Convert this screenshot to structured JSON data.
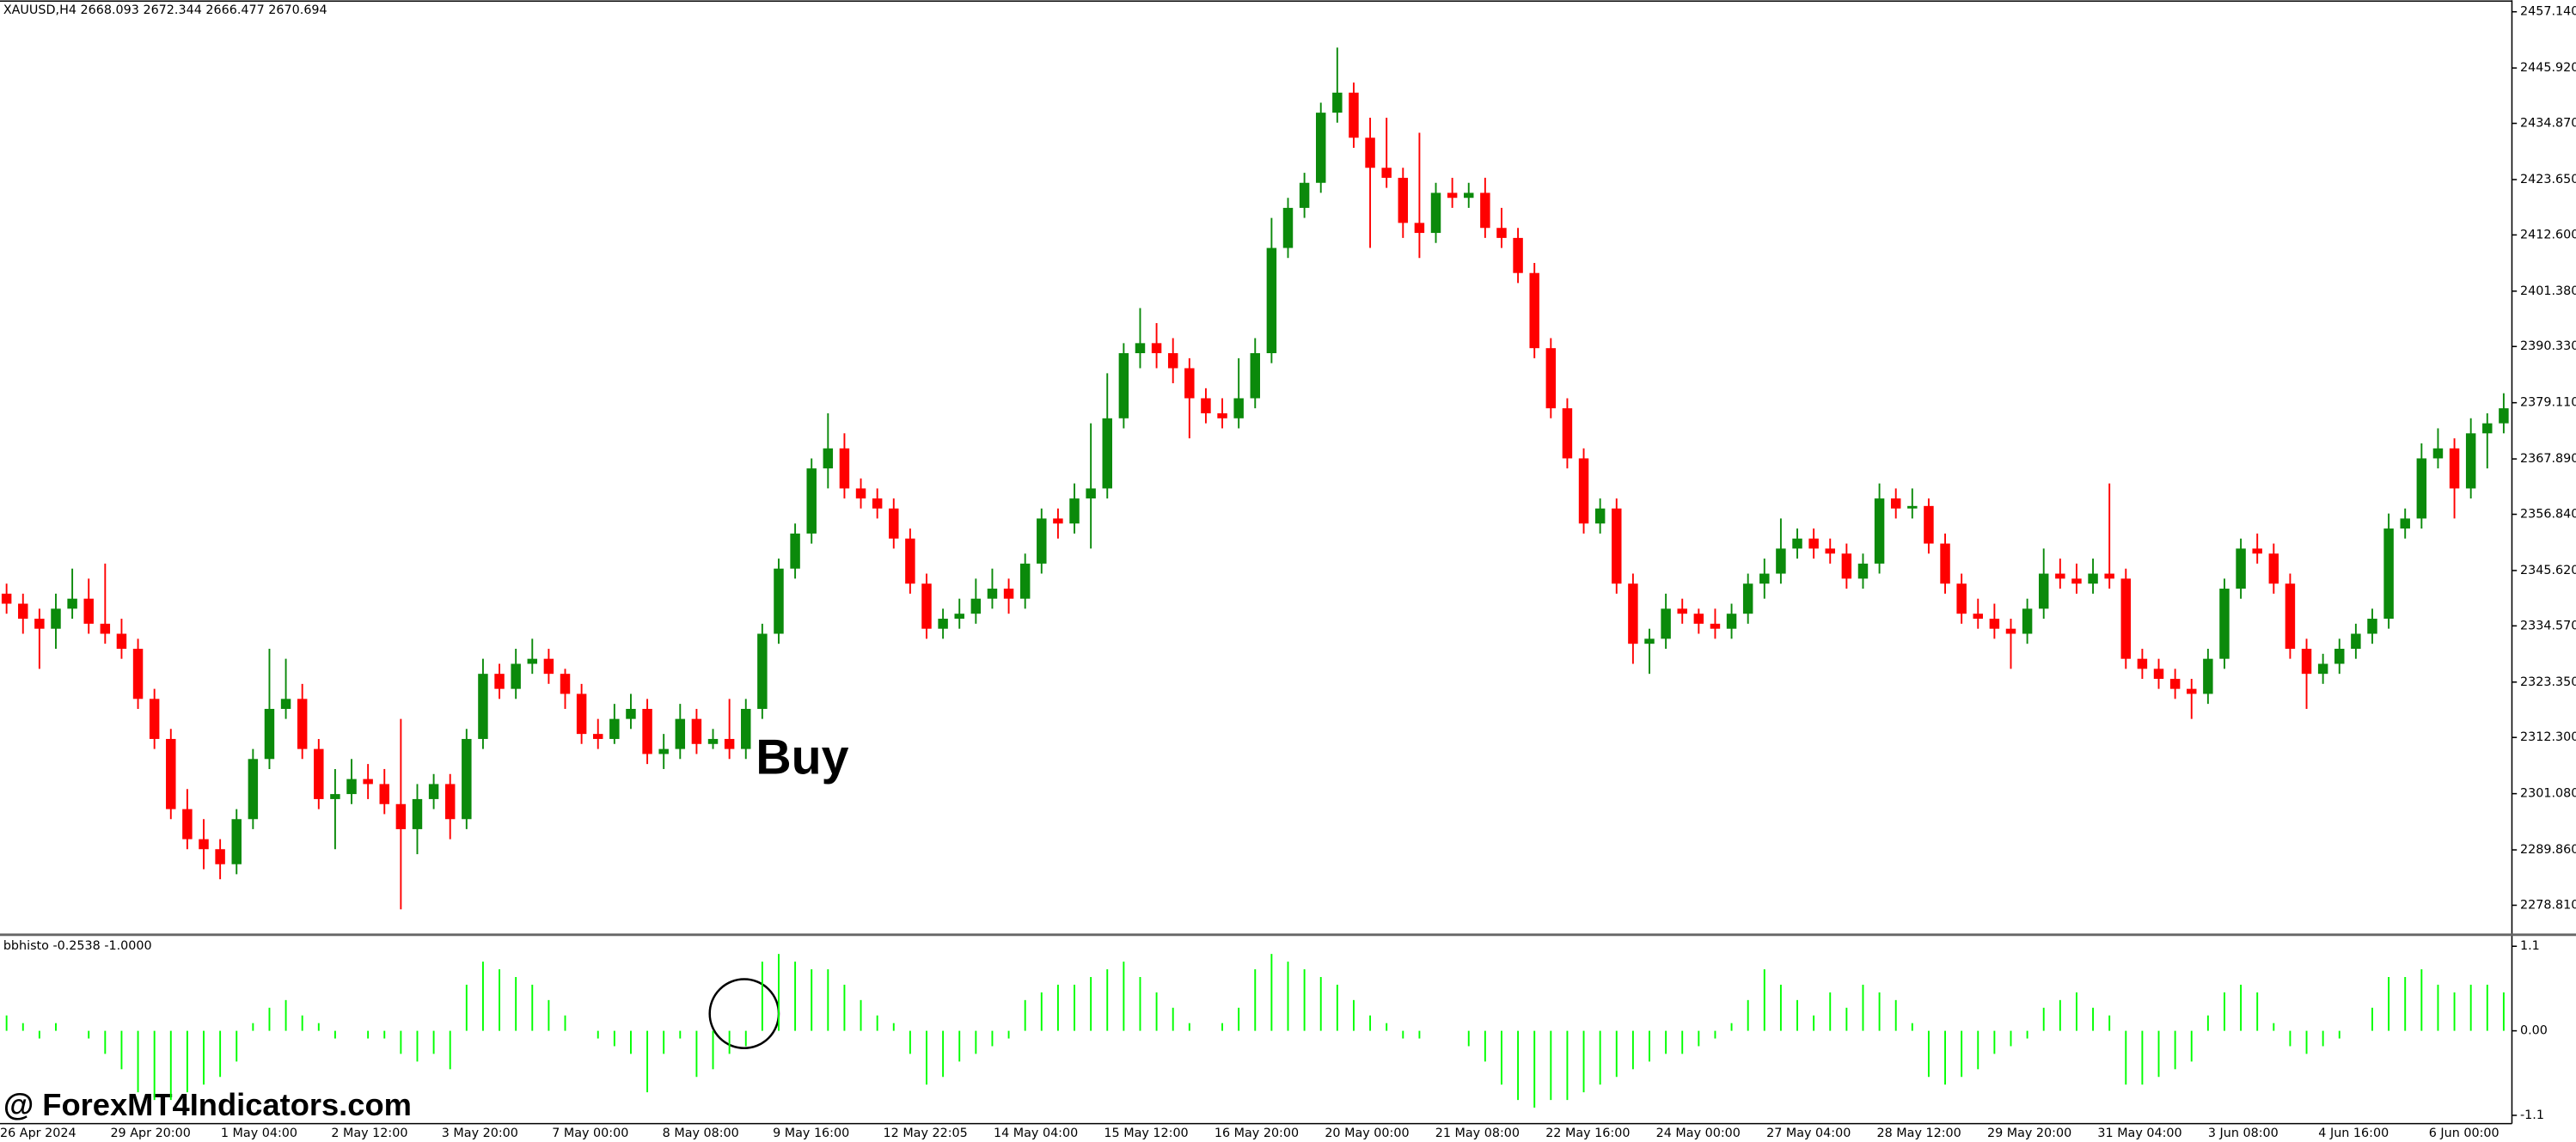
{
  "chart_data": [
    {
      "type": "candlestick",
      "title": "XAUUSD,H4  2668.093 2672.344 2666.477 2670.694",
      "annotation": "Buy",
      "up_color": "#0b8a0b",
      "down_color": "#ff0000",
      "ylim": [
        2273.24,
        2459.11
      ],
      "yticks": [
        {
          "value": 2457.14,
          "label": "2457.140"
        },
        {
          "value": 2445.92,
          "label": "2445.920"
        },
        {
          "value": 2434.87,
          "label": "2434.870"
        },
        {
          "value": 2423.65,
          "label": "2423.650"
        },
        {
          "value": 2412.6,
          "label": "2412.600"
        },
        {
          "value": 2401.38,
          "label": "2401.380"
        },
        {
          "value": 2390.33,
          "label": "2390.330"
        },
        {
          "value": 2379.11,
          "label": "2379.110"
        },
        {
          "value": 2367.89,
          "label": "2367.890"
        },
        {
          "value": 2356.84,
          "label": "2356.840"
        },
        {
          "value": 2345.62,
          "label": "2345.620"
        },
        {
          "value": 2334.57,
          "label": "2334.570"
        },
        {
          "value": 2323.35,
          "label": "2323.350"
        },
        {
          "value": 2312.3,
          "label": "2312.300"
        },
        {
          "value": 2301.08,
          "label": "2301.080"
        },
        {
          "value": 2289.86,
          "label": "2289.860"
        },
        {
          "value": 2278.81,
          "label": "2278.810"
        }
      ],
      "x_labels": [
        "26 Apr 2024",
        "29 Apr 20:00",
        "1 May 04:00",
        "2 May 12:00",
        "3 May 20:00",
        "7 May 00:00",
        "8 May 08:00",
        "9 May 16:00",
        "12 May 22:05",
        "14 May 04:00",
        "15 May 12:00",
        "16 May 20:00",
        "20 May 00:00",
        "21 May 08:00",
        "22 May 16:00",
        "24 May 00:00",
        "27 May 04:00",
        "28 May 12:00",
        "29 May 20:00",
        "31 May 04:00",
        "3 Jun 08:00",
        "4 Jun 16:00",
        "6 Jun 00:00"
      ],
      "ohlc": [
        [
          2341,
          2343,
          2337,
          2339
        ],
        [
          2339,
          2341,
          2333,
          2336
        ],
        [
          2336,
          2338,
          2326,
          2334
        ],
        [
          2334,
          2341,
          2330,
          2338
        ],
        [
          2338,
          2346,
          2336,
          2340
        ],
        [
          2340,
          2344,
          2333,
          2335
        ],
        [
          2335,
          2347,
          2331,
          2333
        ],
        [
          2333,
          2336,
          2328,
          2330
        ],
        [
          2330,
          2332,
          2318,
          2320
        ],
        [
          2320,
          2322,
          2310,
          2312
        ],
        [
          2312,
          2314,
          2296,
          2298
        ],
        [
          2298,
          2302,
          2290,
          2292
        ],
        [
          2292,
          2296,
          2286,
          2290
        ],
        [
          2290,
          2292,
          2284,
          2287
        ],
        [
          2287,
          2298,
          2285,
          2296
        ],
        [
          2296,
          2310,
          2294,
          2308
        ],
        [
          2308,
          2330,
          2306,
          2318
        ],
        [
          2318,
          2328,
          2316,
          2320
        ],
        [
          2320,
          2323,
          2308,
          2310
        ],
        [
          2310,
          2312,
          2298,
          2300
        ],
        [
          2300,
          2306,
          2290,
          2301
        ],
        [
          2301,
          2308,
          2299,
          2304
        ],
        [
          2304,
          2307,
          2300,
          2303
        ],
        [
          2303,
          2306,
          2297,
          2299
        ],
        [
          2299,
          2316,
          2278,
          2294
        ],
        [
          2294,
          2303,
          2289,
          2300
        ],
        [
          2300,
          2305,
          2298,
          2303
        ],
        [
          2303,
          2305,
          2292,
          2296
        ],
        [
          2296,
          2314,
          2294,
          2312
        ],
        [
          2312,
          2328,
          2310,
          2325
        ],
        [
          2325,
          2327,
          2320,
          2322
        ],
        [
          2322,
          2330,
          2320,
          2327
        ],
        [
          2327,
          2332,
          2325,
          2328
        ],
        [
          2328,
          2330,
          2323,
          2325
        ],
        [
          2325,
          2326,
          2318,
          2321
        ],
        [
          2321,
          2323,
          2311,
          2313
        ],
        [
          2313,
          2316,
          2310,
          2312
        ],
        [
          2312,
          2319,
          2311,
          2316
        ],
        [
          2316,
          2321,
          2314,
          2318
        ],
        [
          2318,
          2320,
          2307,
          2309
        ],
        [
          2309,
          2313,
          2306,
          2310
        ],
        [
          2310,
          2319,
          2308,
          2316
        ],
        [
          2316,
          2318,
          2309,
          2311
        ],
        [
          2311,
          2314,
          2310,
          2312
        ],
        [
          2312,
          2320,
          2308,
          2310
        ],
        [
          2310,
          2320,
          2308,
          2318
        ],
        [
          2318,
          2335,
          2316,
          2333
        ],
        [
          2333,
          2348,
          2331,
          2346
        ],
        [
          2346,
          2355,
          2344,
          2353
        ],
        [
          2353,
          2368,
          2351,
          2366
        ],
        [
          2366,
          2377,
          2362,
          2370
        ],
        [
          2370,
          2373,
          2360,
          2362
        ],
        [
          2362,
          2364,
          2358,
          2360
        ],
        [
          2360,
          2362,
          2356,
          2358
        ],
        [
          2358,
          2360,
          2350,
          2352
        ],
        [
          2352,
          2354,
          2341,
          2343
        ],
        [
          2343,
          2345,
          2332,
          2334
        ],
        [
          2334,
          2338,
          2332,
          2336
        ],
        [
          2336,
          2340,
          2334,
          2337
        ],
        [
          2337,
          2344,
          2335,
          2340
        ],
        [
          2340,
          2346,
          2338,
          2342
        ],
        [
          2342,
          2344,
          2337,
          2340
        ],
        [
          2340,
          2349,
          2338,
          2347
        ],
        [
          2347,
          2358,
          2345,
          2356
        ],
        [
          2356,
          2358,
          2352,
          2355
        ],
        [
          2355,
          2363,
          2353,
          2360
        ],
        [
          2360,
          2375,
          2350,
          2362
        ],
        [
          2362,
          2385,
          2360,
          2376
        ],
        [
          2376,
          2391,
          2374,
          2389
        ],
        [
          2389,
          2398,
          2386,
          2391
        ],
        [
          2391,
          2395,
          2386,
          2389
        ],
        [
          2389,
          2392,
          2383,
          2386
        ],
        [
          2386,
          2388,
          2372,
          2380
        ],
        [
          2380,
          2382,
          2375,
          2377
        ],
        [
          2377,
          2380,
          2374,
          2376
        ],
        [
          2376,
          2388,
          2374,
          2380
        ],
        [
          2380,
          2392,
          2378,
          2389
        ],
        [
          2389,
          2416,
          2387,
          2410
        ],
        [
          2410,
          2420,
          2408,
          2418
        ],
        [
          2418,
          2425,
          2416,
          2423
        ],
        [
          2423,
          2439,
          2421,
          2437
        ],
        [
          2437,
          2450,
          2435,
          2441
        ],
        [
          2441,
          2443,
          2430,
          2432
        ],
        [
          2432,
          2436,
          2410,
          2426
        ],
        [
          2426,
          2436,
          2422,
          2424
        ],
        [
          2424,
          2426,
          2412,
          2415
        ],
        [
          2415,
          2433,
          2408,
          2413
        ],
        [
          2413,
          2423,
          2411,
          2421
        ],
        [
          2421,
          2424,
          2418,
          2420
        ],
        [
          2420,
          2423,
          2418,
          2421
        ],
        [
          2421,
          2424,
          2412,
          2414
        ],
        [
          2414,
          2418,
          2410,
          2412
        ],
        [
          2412,
          2414,
          2403,
          2405
        ],
        [
          2405,
          2407,
          2388,
          2390
        ],
        [
          2390,
          2392,
          2376,
          2378
        ],
        [
          2378,
          2380,
          2366,
          2368
        ],
        [
          2368,
          2370,
          2353,
          2355
        ],
        [
          2355,
          2360,
          2353,
          2358
        ],
        [
          2358,
          2360,
          2341,
          2343
        ],
        [
          2343,
          2345,
          2327,
          2331
        ],
        [
          2331,
          2334,
          2325,
          2332
        ],
        [
          2332,
          2341,
          2330,
          2338
        ],
        [
          2338,
          2340,
          2335,
          2337
        ],
        [
          2337,
          2338,
          2333,
          2335
        ],
        [
          2335,
          2338,
          2332,
          2334
        ],
        [
          2334,
          2339,
          2332,
          2337
        ],
        [
          2337,
          2345,
          2335,
          2343
        ],
        [
          2343,
          2348,
          2340,
          2345
        ],
        [
          2345,
          2356,
          2343,
          2350
        ],
        [
          2350,
          2354,
          2348,
          2352
        ],
        [
          2352,
          2354,
          2348,
          2350
        ],
        [
          2350,
          2352,
          2347,
          2349
        ],
        [
          2349,
          2351,
          2342,
          2344
        ],
        [
          2344,
          2349,
          2342,
          2347
        ],
        [
          2347,
          2363,
          2345,
          2360
        ],
        [
          2360,
          2362,
          2356,
          2358
        ],
        [
          2358,
          2362,
          2356,
          2358.5
        ],
        [
          2358.5,
          2360,
          2349,
          2351
        ],
        [
          2351,
          2353,
          2341,
          2343
        ],
        [
          2343,
          2345,
          2335,
          2337
        ],
        [
          2337,
          2340,
          2334,
          2336
        ],
        [
          2336,
          2339,
          2332,
          2334
        ],
        [
          2334,
          2336,
          2326,
          2333
        ],
        [
          2333,
          2340,
          2331,
          2338
        ],
        [
          2338,
          2350,
          2336,
          2345
        ],
        [
          2345,
          2348,
          2342,
          2344
        ],
        [
          2344,
          2347,
          2341,
          2343
        ],
        [
          2343,
          2348,
          2341,
          2345
        ],
        [
          2345,
          2363,
          2342,
          2344
        ],
        [
          2344,
          2346,
          2326,
          2328
        ],
        [
          2328,
          2330,
          2324,
          2326
        ],
        [
          2326,
          2328,
          2322,
          2324
        ],
        [
          2324,
          2326,
          2320,
          2322
        ],
        [
          2322,
          2324,
          2316,
          2321
        ],
        [
          2321,
          2330,
          2319,
          2328
        ],
        [
          2328,
          2344,
          2326,
          2342
        ],
        [
          2342,
          2352,
          2340,
          2350
        ],
        [
          2350,
          2353,
          2347,
          2349
        ],
        [
          2349,
          2351,
          2341,
          2343
        ],
        [
          2343,
          2345,
          2328,
          2330
        ],
        [
          2330,
          2332,
          2318,
          2325
        ],
        [
          2325,
          2329,
          2323,
          2327
        ],
        [
          2327,
          2332,
          2325,
          2330
        ],
        [
          2330,
          2335,
          2328,
          2333
        ],
        [
          2333,
          2338,
          2331,
          2336
        ],
        [
          2336,
          2357,
          2334,
          2354
        ],
        [
          2354,
          2358,
          2352,
          2356
        ],
        [
          2356,
          2371,
          2354,
          2368
        ],
        [
          2368,
          2374,
          2366,
          2370
        ],
        [
          2370,
          2372,
          2356,
          2362
        ],
        [
          2362,
          2376,
          2360,
          2373
        ],
        [
          2373,
          2377,
          2366,
          2375
        ],
        [
          2375,
          2381,
          2373,
          2378
        ]
      ]
    },
    {
      "type": "bar",
      "title": "bbhisto -0.2538 -1.0000",
      "color": "#00ff00",
      "ylim": [
        -1.187,
        1.228
      ],
      "yticks": [
        1.1,
        {
          "value": 0,
          "label": "0.00"
        },
        -1.1
      ],
      "values": [
        0.2,
        0.1,
        -0.1,
        0.1,
        0.0,
        -0.1,
        -0.3,
        -0.5,
        -0.8,
        -0.9,
        -0.9,
        -0.8,
        -0.7,
        -0.6,
        -0.4,
        0.1,
        0.3,
        0.4,
        0.2,
        0.1,
        -0.1,
        0.0,
        -0.1,
        -0.1,
        -0.3,
        -0.4,
        -0.3,
        -0.5,
        0.6,
        0.9,
        0.8,
        0.7,
        0.6,
        0.4,
        0.2,
        0.0,
        -0.1,
        -0.2,
        -0.3,
        -0.8,
        -0.3,
        -0.1,
        -0.6,
        -0.5,
        -0.3,
        -0.2,
        0.9,
        1.0,
        0.9,
        0.8,
        0.8,
        0.6,
        0.4,
        0.2,
        0.1,
        -0.3,
        -0.7,
        -0.6,
        -0.4,
        -0.3,
        -0.2,
        -0.1,
        0.4,
        0.5,
        0.6,
        0.6,
        0.7,
        0.8,
        0.9,
        0.7,
        0.5,
        0.3,
        0.1,
        0.0,
        0.1,
        0.3,
        0.8,
        1.0,
        0.9,
        0.8,
        0.7,
        0.6,
        0.4,
        0.2,
        0.1,
        -0.1,
        -0.1,
        0.0,
        0.0,
        -0.2,
        -0.4,
        -0.7,
        -0.9,
        -1.0,
        -0.9,
        -0.9,
        -0.8,
        -0.7,
        -0.6,
        -0.5,
        -0.4,
        -0.3,
        -0.3,
        -0.2,
        -0.1,
        0.1,
        0.4,
        0.8,
        0.6,
        0.4,
        0.2,
        0.5,
        0.3,
        0.6,
        0.5,
        0.4,
        0.1,
        -0.6,
        -0.7,
        -0.6,
        -0.5,
        -0.3,
        -0.2,
        -0.1,
        0.3,
        0.4,
        0.5,
        0.3,
        0.2,
        -0.7,
        -0.7,
        -0.6,
        -0.5,
        -0.4,
        0.2,
        0.5,
        0.6,
        0.5,
        0.1,
        -0.2,
        -0.3,
        -0.2,
        -0.1,
        0.0,
        0.3,
        0.7,
        0.7,
        0.8,
        0.6,
        0.5,
        0.6,
        0.6,
        0.5
      ]
    }
  ],
  "watermark": "@ ForexMT4Indicators.com"
}
